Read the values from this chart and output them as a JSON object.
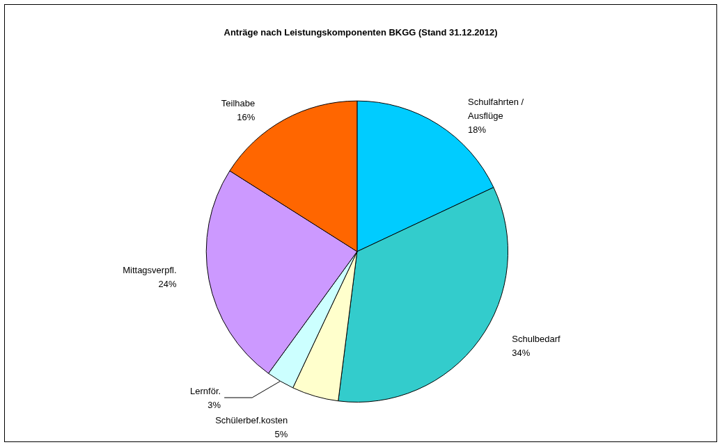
{
  "chart_data": {
    "type": "pie",
    "title": "Anträge nach Leistungskomponenten BKGG (Stand 31.12.2012)",
    "categories": [
      "Schulfahrten / Ausflüge",
      "Schulbedarf",
      "Schülerbef.kosten",
      "Lernför.",
      "Mittagsverpfl.",
      "Teilhabe"
    ],
    "values": [
      18,
      34,
      5,
      3,
      24,
      16
    ],
    "colors": [
      "#00ccff",
      "#33cccc",
      "#ffffcc",
      "#ccffff",
      "#cc99ff",
      "#ff6600"
    ],
    "value_labels": [
      "18%",
      "34%",
      "5%",
      "3%",
      "24%",
      "16%"
    ],
    "legend": false
  }
}
